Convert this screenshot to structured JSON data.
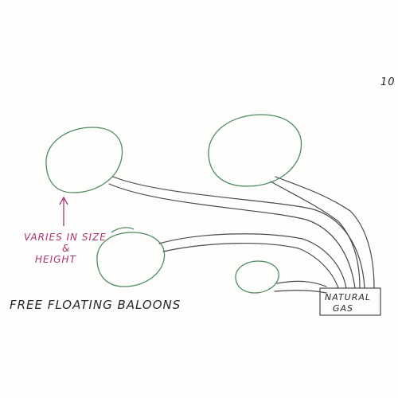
{
  "colors": {
    "balloon_stroke": "#4f8a5e",
    "hose_stroke": "#4a4a4a",
    "annotation_color": "#a8346f",
    "text_color": "#2a2a2a"
  },
  "page_number": "10",
  "annotation": {
    "line1": "VARIES IN SIZE",
    "line2": "&",
    "line3": "HEIGHT"
  },
  "caption": "FREE FLOATING BALOONS",
  "tank_label": {
    "line1": "NATURAL",
    "line2": "GAS"
  }
}
